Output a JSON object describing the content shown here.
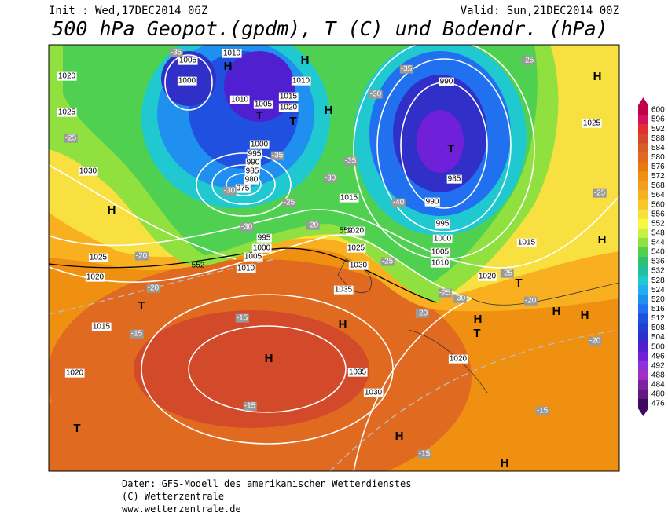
{
  "header": {
    "init": "Init : Wed,17DEC2014 06Z",
    "valid": "Valid: Sun,21DEC2014 00Z",
    "title": "500 hPa Geopot.(gpdm), T (C) und Bodendr. (hPa)"
  },
  "map": {
    "isobar_labels": [
      "1005",
      "1000",
      "1010",
      "1010",
      "1005",
      "1020",
      "1015",
      "1010",
      "1000",
      "995",
      "990",
      "985",
      "980",
      "975",
      "1020",
      "1025",
      "1030",
      "1025",
      "1020",
      "1015",
      "1020",
      "1015",
      "1020",
      "1025",
      "1030",
      "1035",
      "995",
      "1000",
      "1005",
      "1010",
      "990",
      "985",
      "990",
      "995",
      "1000",
      "1005",
      "1010",
      "1015",
      "1020",
      "1025",
      "1020",
      "1035",
      "1030"
    ],
    "contour_labels": [
      "552",
      "552"
    ],
    "temperature_labels": [
      "-35",
      "-35",
      "-30",
      "-25",
      "-30",
      "-35",
      "-40",
      "-35",
      "-30",
      "-25",
      "-25",
      "-20",
      "-30",
      "-20",
      "-25",
      "-25",
      "-20",
      "-15",
      "-15",
      "-15",
      "-20",
      "-25",
      "-30",
      "-20",
      "-25",
      "-20",
      "-15",
      "-15"
    ],
    "pressure_centers": [
      "H",
      "H",
      "H",
      "T",
      "T",
      "T",
      "H",
      "H",
      "H",
      "T",
      "H",
      "H",
      "T",
      "T",
      "H",
      "H",
      "H",
      "T",
      "H",
      "H"
    ]
  },
  "colorbar": {
    "ticks": [
      600,
      596,
      592,
      588,
      584,
      580,
      576,
      572,
      568,
      564,
      560,
      556,
      552,
      548,
      544,
      540,
      536,
      532,
      528,
      524,
      520,
      516,
      512,
      508,
      504,
      500,
      496,
      492,
      488,
      484,
      480,
      476
    ],
    "colors": [
      "#c0004a",
      "#d4145a",
      "#e03030",
      "#d24a2a",
      "#da5a2a",
      "#e06a20",
      "#e87a10",
      "#f09010",
      "#f0a020",
      "#f8b020",
      "#f8c828",
      "#f8e040",
      "#f8f840",
      "#c8f040",
      "#90e040",
      "#50d050",
      "#30c070",
      "#20c0a0",
      "#20c8d0",
      "#20b0f0",
      "#2090f0",
      "#2070f0",
      "#2050e0",
      "#2040d0",
      "#3030c8",
      "#5020d0",
      "#7020d8",
      "#9030d8",
      "#a030c0",
      "#8020a0",
      "#601880",
      "#400860"
    ]
  },
  "footer": {
    "line1": "Daten: GFS-Modell des amerikanischen Wetterdienstes",
    "line2": "(C) Wetterzentrale",
    "line3": "www.wetterzentrale.de"
  }
}
